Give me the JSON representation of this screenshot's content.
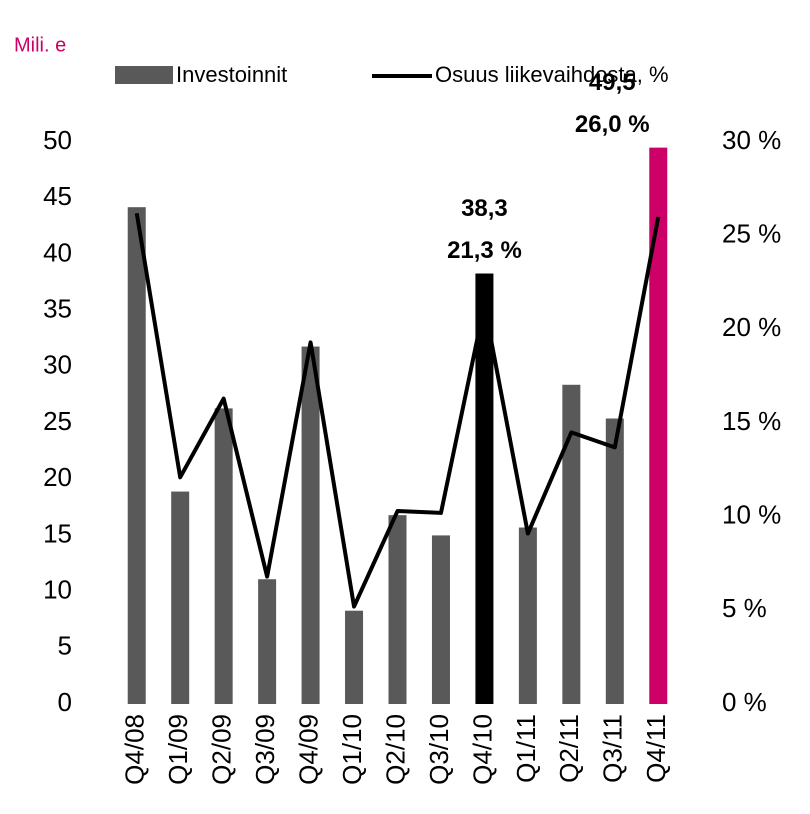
{
  "chart_data": {
    "type": "bar_line",
    "unit_label": "Mili. e",
    "categories": [
      "Q4/08",
      "Q1/09",
      "Q2/09",
      "Q3/09",
      "Q4/09",
      "Q1/10",
      "Q2/10",
      "Q3/10",
      "Q4/10",
      "Q1/11",
      "Q2/11",
      "Q3/11",
      "Q4/11"
    ],
    "series": [
      {
        "name": "Investoinnit",
        "color": "#595959",
        "colors": [
          "#595959",
          "#595959",
          "#595959",
          "#595959",
          "#595959",
          "#595959",
          "#595959",
          "#595959",
          "#000000",
          "#595959",
          "#595959",
          "#595959",
          "#cc0066"
        ],
        "values": [
          44.2,
          18.9,
          26.3,
          11.1,
          31.8,
          8.3,
          16.8,
          15.0,
          38.3,
          15.7,
          28.4,
          25.4,
          49.5
        ],
        "value_labels": [
          null,
          null,
          null,
          null,
          null,
          null,
          null,
          null,
          "38,3",
          null,
          null,
          null,
          "49,5"
        ]
      },
      {
        "name": "Osuus liikevaihdosta, %",
        "color": "#000000",
        "axis": "y2",
        "values": [
          26.2,
          12.1,
          16.3,
          6.8,
          19.3,
          5.2,
          10.3,
          10.2,
          21.3,
          9.1,
          14.5,
          13.7,
          26.0
        ],
        "value_labels": [
          null,
          null,
          null,
          null,
          null,
          null,
          null,
          null,
          "21,3 %",
          null,
          null,
          null,
          "26,0 %"
        ]
      }
    ],
    "ylim": [
      0,
      50
    ],
    "yticks": [
      0,
      5,
      10,
      15,
      20,
      25,
      30,
      35,
      40,
      45,
      50
    ],
    "y2lim": [
      0,
      30
    ],
    "y2ticks": [
      {
        "value": 0,
        "label": "0 %"
      },
      {
        "value": 5,
        "label": "5 %"
      },
      {
        "value": 10,
        "label": "10 %"
      },
      {
        "value": 15,
        "label": "15 %"
      },
      {
        "value": 20,
        "label": "20 %"
      },
      {
        "value": 25,
        "label": "25 %"
      },
      {
        "value": 30,
        "label": "30 %"
      }
    ],
    "grid": false,
    "legend": "top"
  }
}
